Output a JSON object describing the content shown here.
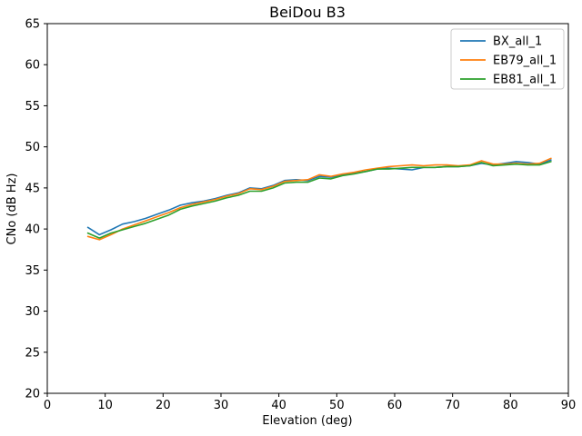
{
  "window": {
    "title": "BeiDou B3"
  },
  "chart_data": {
    "type": "line",
    "title": "BeiDou B3",
    "xlabel": "Elevation (deg)",
    "ylabel": "CNo (dB Hz)",
    "xlim": [
      0,
      90
    ],
    "ylim": [
      20,
      65
    ],
    "xticks": [
      0,
      10,
      20,
      30,
      40,
      50,
      60,
      70,
      80,
      90
    ],
    "yticks": [
      20,
      25,
      30,
      35,
      40,
      45,
      50,
      55,
      60,
      65
    ],
    "grid": false,
    "legend_position": "upper right",
    "frame_color": "#000000",
    "x": [
      7,
      9,
      11,
      13,
      15,
      17,
      19,
      21,
      23,
      25,
      27,
      29,
      31,
      33,
      35,
      37,
      39,
      41,
      43,
      45,
      47,
      49,
      51,
      53,
      55,
      57,
      59,
      61,
      63,
      65,
      67,
      69,
      71,
      73,
      75,
      77,
      79,
      81,
      83,
      85,
      87
    ],
    "series": [
      {
        "name": "BX_all_1",
        "color": "#1f77b4",
        "values": [
          40.2,
          39.3,
          39.9,
          40.6,
          40.9,
          41.3,
          41.8,
          42.3,
          42.9,
          43.2,
          43.4,
          43.7,
          44.1,
          44.4,
          45.0,
          44.9,
          45.3,
          45.9,
          46.0,
          45.9,
          46.4,
          46.3,
          46.6,
          46.8,
          47.0,
          47.3,
          47.4,
          47.3,
          47.2,
          47.5,
          47.5,
          47.6,
          47.6,
          47.7,
          48.0,
          47.8,
          48.0,
          48.2,
          48.1,
          47.9,
          48.4
        ]
      },
      {
        "name": "EB79_all_1",
        "color": "#ff7f0e",
        "values": [
          39.1,
          38.7,
          39.3,
          40.0,
          40.5,
          41.0,
          41.5,
          42.0,
          42.6,
          43.0,
          43.3,
          43.6,
          44.0,
          44.3,
          44.9,
          44.8,
          45.2,
          45.8,
          45.9,
          46.0,
          46.6,
          46.4,
          46.7,
          46.9,
          47.2,
          47.4,
          47.6,
          47.7,
          47.8,
          47.7,
          47.8,
          47.8,
          47.7,
          47.8,
          48.3,
          47.9,
          47.9,
          48.0,
          47.9,
          48.0,
          48.6
        ]
      },
      {
        "name": "EB81_all_1",
        "color": "#2ca02c",
        "values": [
          39.5,
          38.9,
          39.5,
          39.9,
          40.3,
          40.7,
          41.2,
          41.7,
          42.4,
          42.8,
          43.1,
          43.4,
          43.8,
          44.1,
          44.6,
          44.6,
          45.0,
          45.6,
          45.7,
          45.7,
          46.2,
          46.1,
          46.5,
          46.7,
          47.0,
          47.3,
          47.3,
          47.4,
          47.5,
          47.5,
          47.5,
          47.6,
          47.6,
          47.7,
          48.1,
          47.7,
          47.8,
          47.9,
          47.8,
          47.8,
          48.2
        ]
      }
    ]
  }
}
